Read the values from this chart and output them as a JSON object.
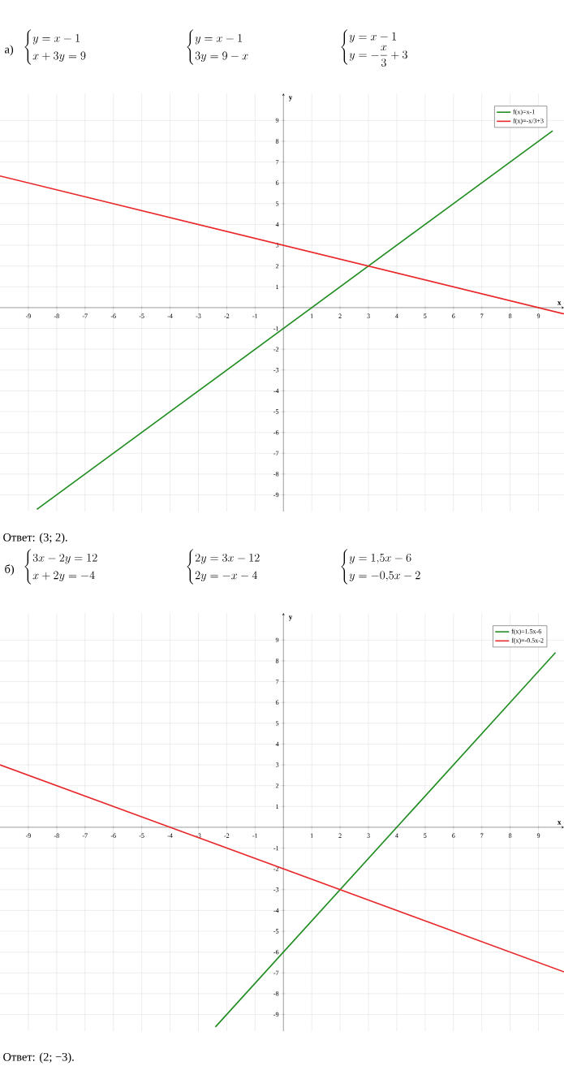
{
  "chart_data": [
    {
      "type": "line",
      "title": "а)",
      "annotations": [
        "\\begin{cases} y = x - 1 \\\\ x + 3y = 9 \\end{cases}",
        "\\begin{cases} y = x - 1 \\\\ 3y = 9 - x \\end{cases}",
        "\\begin{cases} y = x - 1 \\\\ y = -\\dfrac{x}{3} + 3 \\end{cases}",
        "Ответ: (3; 2)."
      ],
      "xlabel": "x",
      "ylabel": "y",
      "xlim": [
        -10,
        9.9
      ],
      "ylim": [
        -9.8,
        10.3
      ],
      "xticks": [
        -9,
        -8,
        -7,
        -6,
        -5,
        -4,
        -3,
        -2,
        -1,
        1,
        2,
        3,
        4,
        5,
        6,
        7,
        8,
        9
      ],
      "yticks": [
        -9,
        -8,
        -7,
        -6,
        -5,
        -4,
        -3,
        -2,
        -1,
        1,
        2,
        3,
        4,
        5,
        6,
        7,
        8,
        9
      ],
      "grid": true,
      "legend": "top right",
      "series": [
        {
          "name": "f(x)=x-1",
          "color": "#1e8c1e",
          "x": [
            -8.7,
            9.5
          ],
          "values": [
            -9.7,
            8.5
          ]
        },
        {
          "name": "f(x)=-x/3+3",
          "color": "#e8282a",
          "x": [
            -10,
            9.9
          ],
          "values": [
            6.33,
            -0.3
          ]
        }
      ]
    },
    {
      "type": "line",
      "title": "б)",
      "annotations": [
        "\\begin{cases} 3x - 2y = 12 \\\\ x + 2y = -4 \\end{cases}",
        "\\begin{cases} 2y = 3x - 12 \\\\ 2y = -x - 4 \\end{cases}",
        "\\begin{cases} y = 1{,}5x - 6 \\\\ y = -0{,}5x - 2 \\end{cases}",
        "Ответ: (2;  −3)."
      ],
      "xlabel": "x",
      "ylabel": "y",
      "xlim": [
        -10,
        9.9
      ],
      "ylim": [
        -9.8,
        10.3
      ],
      "xticks": [
        -9,
        -8,
        -7,
        -6,
        -5,
        -4,
        -3,
        -2,
        -1,
        1,
        2,
        3,
        4,
        5,
        6,
        7,
        8,
        9
      ],
      "yticks": [
        -9,
        -8,
        -7,
        -6,
        -5,
        -4,
        -3,
        -2,
        -1,
        1,
        2,
        3,
        4,
        5,
        6,
        7,
        8,
        9
      ],
      "grid": true,
      "legend": "top right",
      "series": [
        {
          "name": "f(x)=1.5x-6",
          "color": "#1e8c1e",
          "x": [
            -2.4,
            9.6
          ],
          "values": [
            -9.6,
            8.4
          ]
        },
        {
          "name": "f(x)=-0.5x-2",
          "color": "#e8282a",
          "x": [
            -10,
            9.9
          ],
          "values": [
            3,
            -6.95
          ]
        }
      ]
    }
  ]
}
